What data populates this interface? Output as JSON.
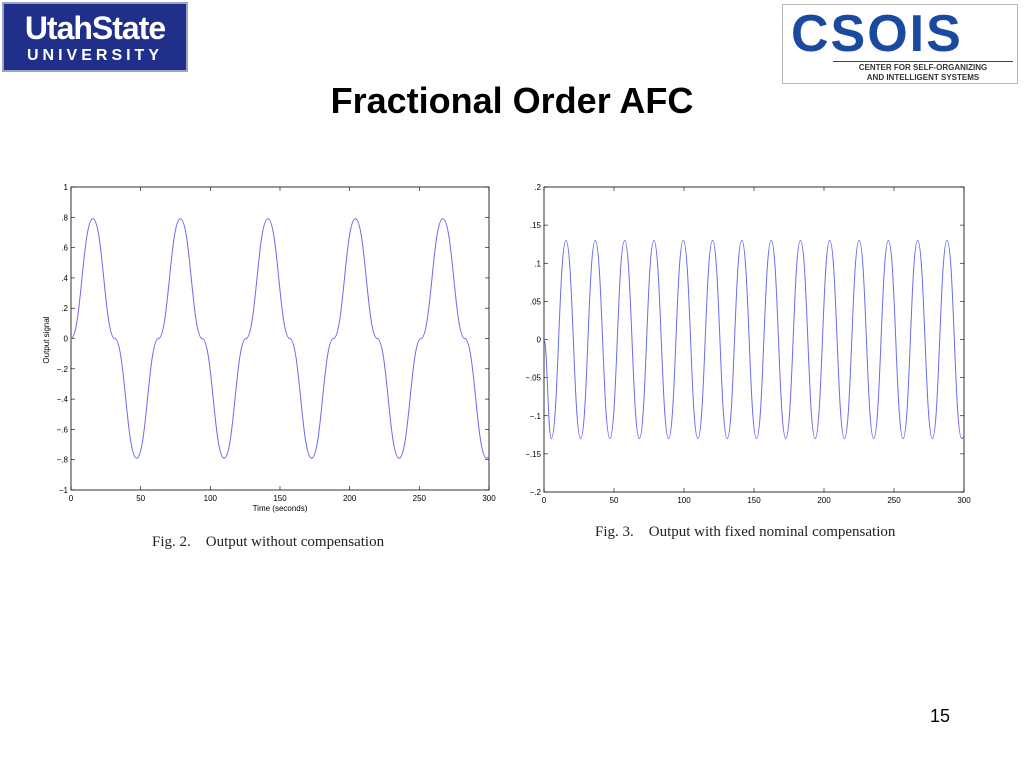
{
  "logos": {
    "usu_line1": "UtahState",
    "usu_line2": "UNIVERSITY",
    "csois_word": "CSOIS",
    "csois_sub1": "CENTER FOR SELF-ORGANIZING",
    "csois_sub2": "AND INTELLIGENT SYSTEMS"
  },
  "slide": {
    "title": "Fractional Order AFC",
    "page_number": "15"
  },
  "colors": {
    "line": "#6a6aee",
    "usu_blue": "#1f2f8a",
    "csois_blue": "#1a4aa0"
  },
  "chart_data": [
    {
      "type": "line",
      "caption": "Fig. 2.    Output without compensation",
      "xlabel": "Time (seconds)",
      "ylabel": "Output signal",
      "xlim": [
        0,
        300
      ],
      "ylim": [
        -1,
        1
      ],
      "xticks": [
        0,
        50,
        100,
        150,
        200,
        250,
        300
      ],
      "yticks": [
        -1,
        -0.8,
        -0.6,
        -0.4,
        -0.2,
        0,
        0.2,
        0.4,
        0.6,
        0.8,
        1
      ],
      "grid": false,
      "series": [
        {
          "x": [
            0,
            15.7,
            31.4,
            47.1,
            62.8,
            78.5,
            94.2,
            109.9,
            125.6,
            141.3,
            157,
            172.7,
            188.4,
            204.1,
            219.8,
            235.5,
            251.2,
            266.9,
            282.6,
            298.3,
            300
          ],
          "y": [
            0,
            0.79,
            0,
            -0.79,
            0,
            0.79,
            0,
            -0.79,
            0,
            0.79,
            0,
            -0.79,
            0,
            0.79,
            0,
            -0.79,
            0,
            0.79,
            0,
            -0.79,
            -0.78
          ]
        }
      ]
    },
    {
      "type": "line",
      "caption": "Fig. 3.    Output with fixed nominal compensation",
      "xlabel": "",
      "ylabel": "",
      "xlim": [
        0,
        300
      ],
      "ylim": [
        -0.2,
        0.2
      ],
      "xticks": [
        0,
        50,
        100,
        150,
        200,
        250,
        300
      ],
      "yticks": [
        -0.2,
        -0.15,
        -0.1,
        -0.05,
        0,
        0.05,
        0.1,
        0.15,
        0.2
      ],
      "grid": false,
      "series": [
        {
          "x": [
            0,
            5.2,
            15.7,
            26.2,
            36.6,
            47.1,
            57.6,
            68.1,
            78.5,
            89,
            99.5,
            109.9,
            120.4,
            130.9,
            141.3,
            151.8,
            162.3,
            172.7,
            183.2,
            193.7,
            204.1,
            214.6,
            225.1,
            235.5,
            246,
            256.5,
            266.9,
            277.4,
            287.9,
            298.3,
            300
          ],
          "y": [
            0,
            -0.13,
            0.13,
            -0.13,
            0.13,
            -0.13,
            0.13,
            -0.13,
            0.13,
            -0.13,
            0.13,
            -0.13,
            0.13,
            -0.13,
            0.13,
            -0.13,
            0.13,
            -0.13,
            0.13,
            -0.13,
            0.13,
            -0.13,
            0.13,
            -0.13,
            0.13,
            -0.13,
            0.13,
            -0.13,
            0.13,
            -0.13,
            -0.128
          ]
        }
      ]
    }
  ]
}
